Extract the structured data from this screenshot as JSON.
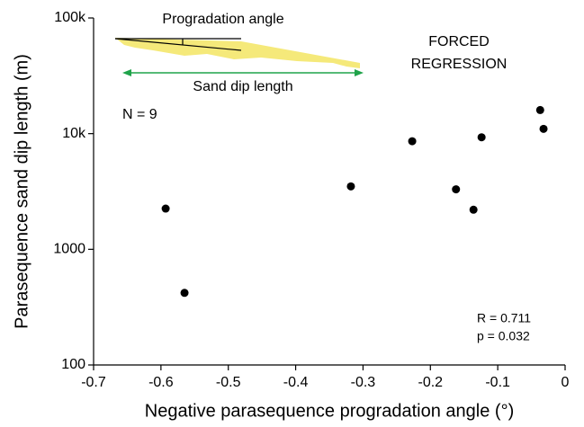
{
  "chart_data": {
    "type": "scatter",
    "x_label": "Negative parasequence progradation angle (°)",
    "y_label": "Parasequence sand dip length (m)",
    "annotations": {
      "inset_angle": "Progradation angle",
      "inset_length": "Sand dip length",
      "regime": [
        "FORCED",
        "REGRESSION"
      ],
      "n": "N = 9",
      "r": "R = 0.711",
      "p": "p = 0.032"
    },
    "color": "#000000",
    "x": [
      -0.593,
      -0.565,
      -0.318,
      -0.227,
      -0.162,
      -0.136,
      -0.124,
      -0.037,
      -0.032
    ],
    "values": [
      2250,
      420,
      3500,
      8600,
      3300,
      2200,
      9300,
      16000,
      11000
    ],
    "xlim": [
      -0.7,
      0
    ],
    "xticks": [
      -0.7,
      -0.6,
      -0.5,
      -0.4,
      -0.3,
      -0.2,
      -0.1,
      0
    ],
    "ylim": [
      100,
      100000
    ],
    "y_log": true,
    "yticks": [
      100,
      1000,
      {
        "value": 10000,
        "label": "10k"
      },
      {
        "value": 100000,
        "label": "100k"
      }
    ]
  }
}
